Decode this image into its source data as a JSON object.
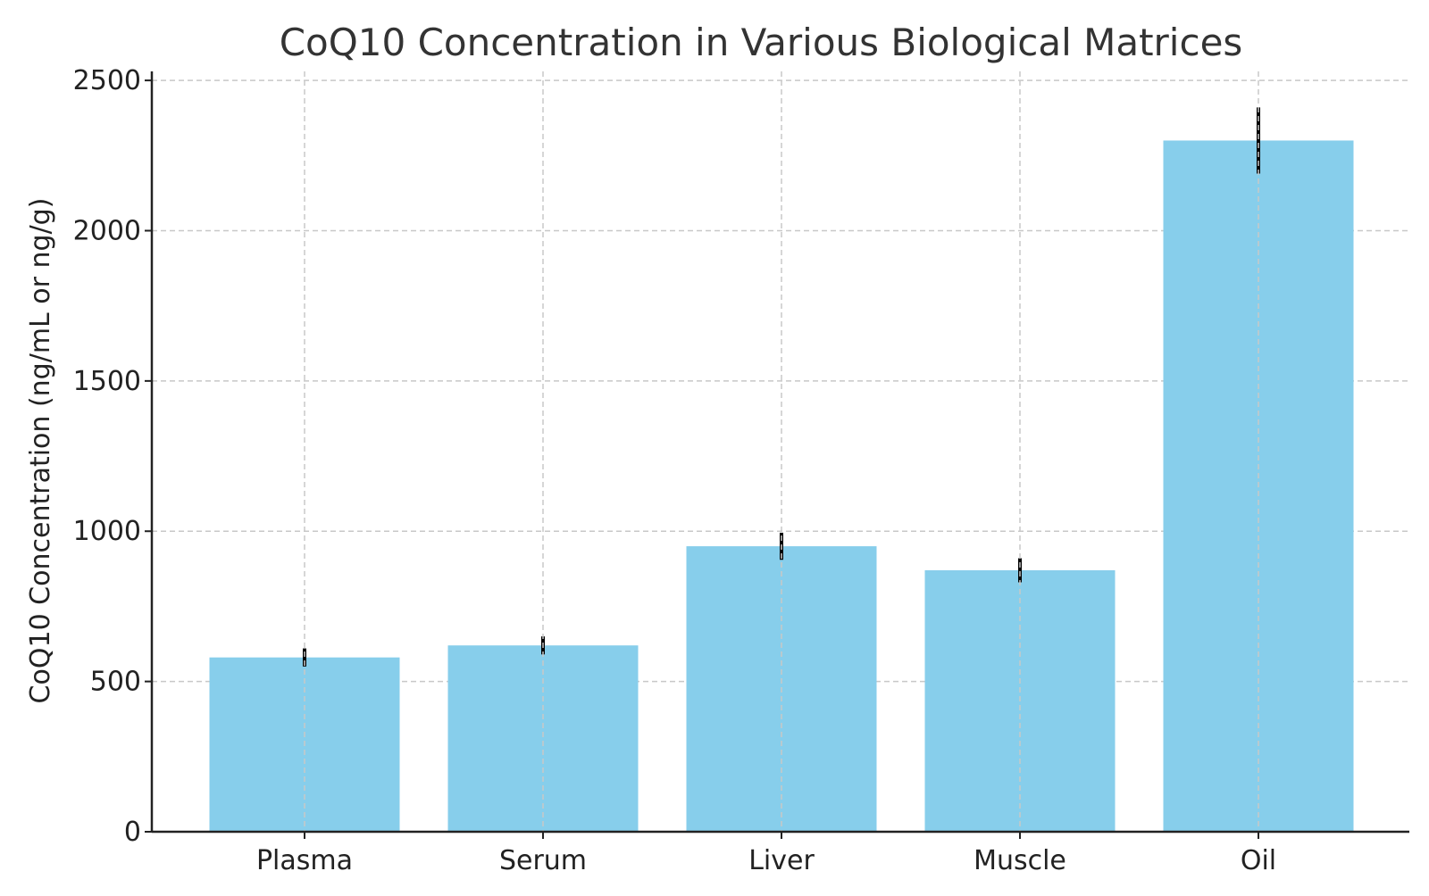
{
  "chart_data": {
    "type": "bar",
    "title": "CoQ10 Concentration in Various Biological Matrices",
    "xlabel": "",
    "ylabel": "CoQ10 Concentration (ng/mL or ng/g)",
    "categories": [
      "Plasma",
      "Serum",
      "Liver",
      "Muscle",
      "Oil"
    ],
    "values": [
      580,
      620,
      950,
      870,
      2300
    ],
    "errors": [
      30,
      30,
      45,
      40,
      110
    ],
    "ylim": [
      0,
      2530
    ],
    "yticks": [
      0,
      500,
      1000,
      1500,
      2000,
      2500
    ],
    "grid": true,
    "bar_color": "#87CEEB",
    "error_color": "#000000",
    "grid_color": "#c8c8c8"
  }
}
